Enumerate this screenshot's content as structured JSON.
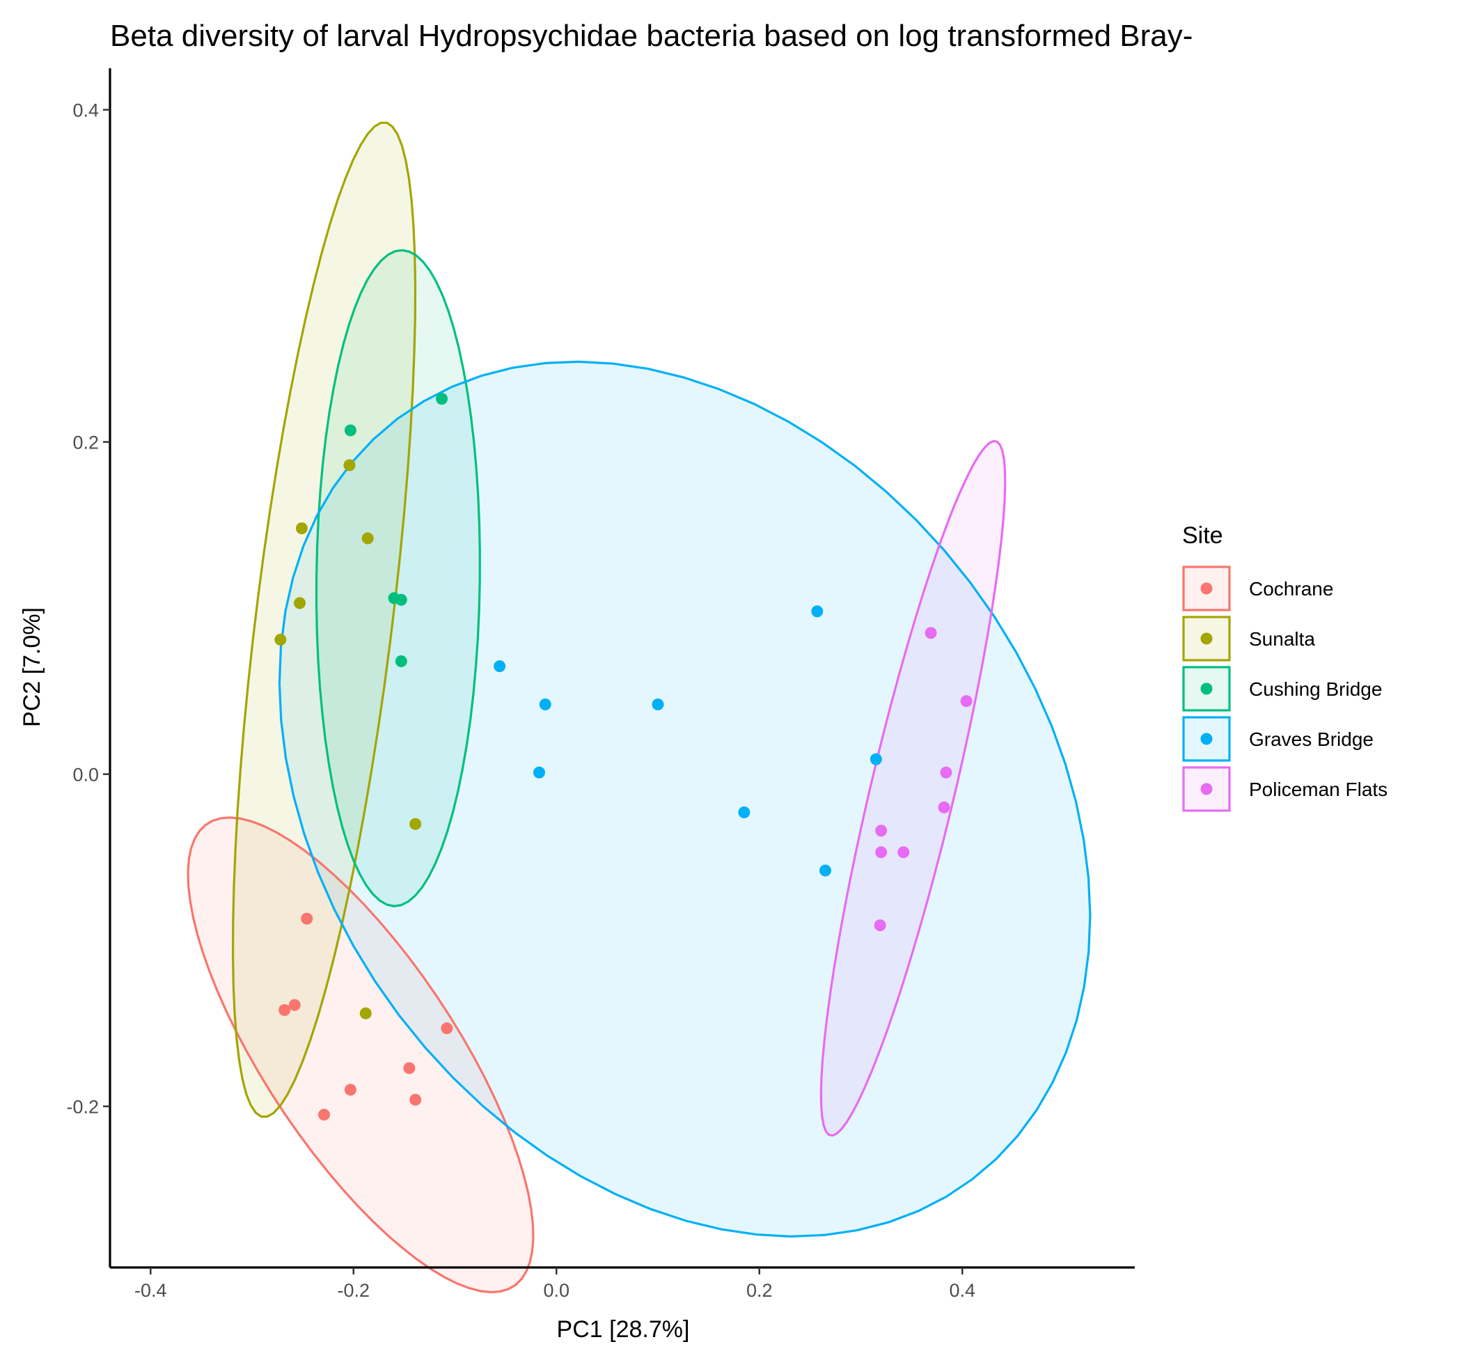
{
  "chart_data": {
    "type": "scatter",
    "title": "Beta diversity of larval Hydropsychidae bacteria based on log transformed Bray-",
    "xlabel": "PC1 [28.7%]",
    "ylabel": "PC2 [7.0%]",
    "xlim": [
      -0.44,
      0.57
    ],
    "ylim": [
      -0.297,
      0.425
    ],
    "xticks": [
      -0.4,
      -0.2,
      0.0,
      0.2,
      0.4
    ],
    "xtick_labels": [
      "-0.4",
      "-0.2",
      "0.0",
      "0.2",
      "0.4"
    ],
    "yticks": [
      -0.2,
      0.0,
      0.2,
      0.4
    ],
    "ytick_labels": [
      "-0.2",
      "0.0",
      "0.2",
      "0.4"
    ],
    "grid": false,
    "legend": {
      "title": "Site",
      "position": "right"
    },
    "series": [
      {
        "name": "Cochrane",
        "color": "#F8766D",
        "points": [
          [
            -0.246,
            -0.087
          ],
          [
            -0.258,
            -0.139
          ],
          [
            -0.268,
            -0.142
          ],
          [
            -0.108,
            -0.153
          ],
          [
            -0.145,
            -0.177
          ],
          [
            -0.203,
            -0.19
          ],
          [
            -0.139,
            -0.196
          ],
          [
            -0.229,
            -0.205
          ]
        ],
        "ellipse": {
          "center": [
            -0.193,
            -0.169
          ],
          "rx": 0.209,
          "ry": 0.0755,
          "angle_deg": -38.5
        }
      },
      {
        "name": "Sunalta",
        "color": "#A3A500",
        "points": [
          [
            -0.204,
            0.186
          ],
          [
            -0.251,
            0.148
          ],
          [
            -0.186,
            0.142
          ],
          [
            -0.253,
            0.103
          ],
          [
            -0.272,
            0.081
          ],
          [
            -0.139,
            -0.03
          ],
          [
            -0.188,
            -0.144
          ]
        ],
        "ellipse": {
          "center": [
            -0.229,
            0.093
          ],
          "rx": 0.3055,
          "ry": 0.0665,
          "angle_deg": 78.3
        }
      },
      {
        "name": "Cushing Bridge",
        "color": "#00BF7D",
        "points": [
          [
            -0.113,
            0.226
          ],
          [
            -0.203,
            0.207
          ],
          [
            -0.16,
            0.106
          ],
          [
            -0.153,
            0.105
          ],
          [
            -0.153,
            0.068
          ]
        ],
        "ellipse": {
          "center": [
            -0.156,
            0.118
          ],
          "rx": 0.1975,
          "ry": 0.0805,
          "angle_deg": 88.8
        }
      },
      {
        "name": "Graves Bridge",
        "color": "#00B0F6",
        "points": [
          [
            0.257,
            0.098
          ],
          [
            -0.056,
            0.065
          ],
          [
            -0.011,
            0.042
          ],
          [
            0.1,
            0.042
          ],
          [
            0.315,
            0.009
          ],
          [
            -0.017,
            0.001
          ],
          [
            0.185,
            -0.023
          ],
          [
            0.265,
            -0.058
          ]
        ],
        "ellipse": {
          "center": [
            0.1265,
            -0.015
          ],
          "rx": 0.4095,
          "ry": 0.2475,
          "angle_deg": -16.0
        }
      },
      {
        "name": "Policeman Flats",
        "color": "#E76BF3",
        "points": [
          [
            0.369,
            0.085
          ],
          [
            0.404,
            0.044
          ],
          [
            0.384,
            0.001
          ],
          [
            0.382,
            -0.02
          ],
          [
            0.32,
            -0.034
          ],
          [
            0.32,
            -0.047
          ],
          [
            0.342,
            -0.047
          ],
          [
            0.319,
            -0.091
          ]
        ],
        "ellipse": {
          "center": [
            0.3515,
            -0.0085
          ],
          "rx": 0.2245,
          "ry": 0.0395,
          "angle_deg": 68.3
        }
      }
    ]
  }
}
